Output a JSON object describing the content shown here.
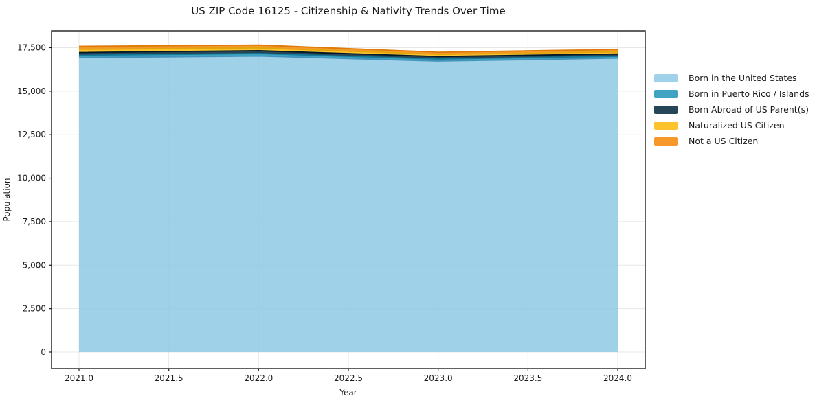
{
  "chart_data": {
    "type": "area",
    "stacked": true,
    "title": "US ZIP Code 16125 - Citizenship & Nativity Trends Over Time",
    "xlabel": "Year",
    "ylabel": "Population",
    "x": [
      2021,
      2022,
      2023,
      2024
    ],
    "xlim": [
      2020.847,
      2024.153
    ],
    "ylim": [
      -947,
      18466
    ],
    "grid": true,
    "grid_color": "#e7e7e7",
    "spine_color": "#1c1c1c",
    "tick_text_color": "#1c1c1c",
    "fill_opacity": 0.85,
    "legend_position": "right",
    "x_ticks": [
      {
        "value": 2021.0,
        "label": "2021.0"
      },
      {
        "value": 2021.5,
        "label": "2021.5"
      },
      {
        "value": 2022.0,
        "label": "2022.0"
      },
      {
        "value": 2022.5,
        "label": "2022.5"
      },
      {
        "value": 2023.0,
        "label": "2023.0"
      },
      {
        "value": 2023.5,
        "label": "2023.5"
      },
      {
        "value": 2024.0,
        "label": "2024.0"
      }
    ],
    "y_ticks": [
      {
        "value": 0,
        "label": "0"
      },
      {
        "value": 2500,
        "label": "2,500"
      },
      {
        "value": 5000,
        "label": "5,000"
      },
      {
        "value": 7500,
        "label": "7,500"
      },
      {
        "value": 10000,
        "label": "10,000"
      },
      {
        "value": 12500,
        "label": "12,500"
      },
      {
        "value": 15000,
        "label": "15,000"
      },
      {
        "value": 17500,
        "label": "17,500"
      }
    ],
    "series": [
      {
        "name": "Born in the United States",
        "color": "#8ec9e4",
        "edge_color": "#4593bb",
        "values": [
          16930,
          17020,
          16730,
          16900
        ]
      },
      {
        "name": "Born in Puerto Rico / Islands",
        "color": "#1d93b6",
        "edge_color": "#157a99",
        "values": [
          135,
          145,
          120,
          110
        ]
      },
      {
        "name": "Born Abroad of US Parent(s)",
        "color": "#00243a",
        "edge_color": "#001a2b",
        "values": [
          160,
          160,
          145,
          130
        ]
      },
      {
        "name": "Naturalized US Citizen",
        "color": "#fcb808",
        "edge_color": "#e2a50e",
        "values": [
          180,
          160,
          120,
          115
        ]
      },
      {
        "name": "Not a US Citizen",
        "color": "#f58605",
        "edge_color": "#dd7a08",
        "values": [
          175,
          170,
          125,
          140
        ]
      }
    ],
    "totals": [
      17580,
      17655,
      17240,
      17395
    ]
  }
}
